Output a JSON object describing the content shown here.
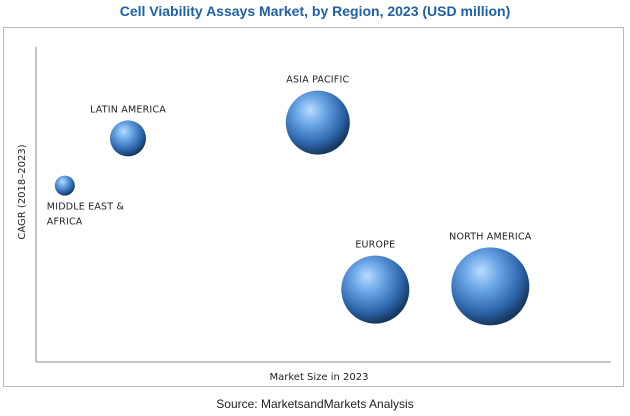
{
  "title": "Cell Viability Assays Market, by Region, 2023 (USD million)",
  "source": "Source: MarketsandMarkets Analysis",
  "colors": {
    "title": "#1f5fa8",
    "bubble_light": "#b9dcff",
    "bubble_mid": "#4a86cf",
    "bubble_dark": "#16375f",
    "axis": "#8c8c8c"
  },
  "chart_data": {
    "type": "scatter",
    "subtype": "bubble",
    "title": "Cell Viability Assays Market, by Region, 2023 (USD million)",
    "xlabel": "Market Size in 2023",
    "ylabel": "CAGR (2018–2023)",
    "x_ticks_shown": false,
    "y_ticks_shown": false,
    "grid": false,
    "xlim": [
      0,
      100
    ],
    "ylim": [
      0,
      100
    ],
    "points": [
      {
        "label": [
          "MIDDLE EAST &",
          "AFRICA"
        ],
        "x": 5,
        "y": 56,
        "size": 10,
        "label_position": "below-right"
      },
      {
        "label": [
          "LATIN AMERICA"
        ],
        "x": 16,
        "y": 71,
        "size": 18,
        "label_position": "above"
      },
      {
        "label": [
          "ASIA PACIFIC"
        ],
        "x": 49,
        "y": 76,
        "size": 32,
        "label_position": "above"
      },
      {
        "label": [
          "EUROPE"
        ],
        "x": 59,
        "y": 23,
        "size": 34,
        "label_position": "above"
      },
      {
        "label": [
          "NORTH AMERICA"
        ],
        "x": 79,
        "y": 24,
        "size": 39,
        "label_position": "above"
      }
    ]
  }
}
